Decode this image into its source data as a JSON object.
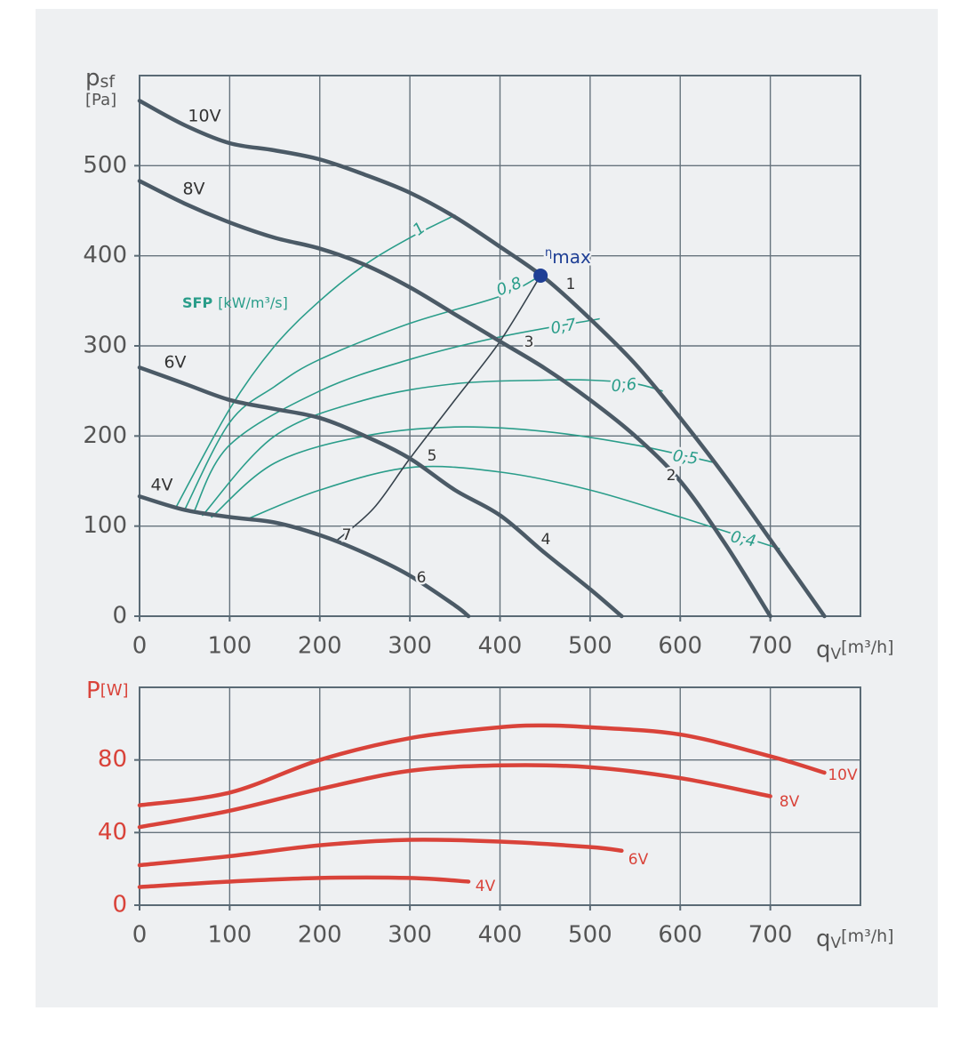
{
  "chart_data": [
    {
      "type": "line",
      "ylabel": {
        "symbol": "p",
        "subscript": "sf",
        "unit": "[Pa]"
      },
      "xlabel": {
        "symbol": "q",
        "subscript": "V",
        "unit": "[m³/h]"
      },
      "xlim": [
        0,
        800
      ],
      "xticks": [
        0,
        100,
        200,
        300,
        400,
        500,
        600,
        700
      ],
      "ylim": [
        0,
        600
      ],
      "yticks": [
        0,
        100,
        200,
        300,
        400,
        500
      ],
      "grid": true,
      "series": [
        {
          "name": "10V",
          "color": "#4b5a66",
          "x": [
            0,
            50,
            100,
            150,
            200,
            250,
            300,
            350,
            400,
            450,
            500,
            550,
            600,
            650,
            700,
            760
          ],
          "values": [
            572,
            545,
            525,
            517,
            507,
            490,
            470,
            443,
            410,
            375,
            330,
            280,
            220,
            155,
            85,
            0
          ]
        },
        {
          "name": "8V",
          "color": "#4b5a66",
          "x": [
            0,
            50,
            100,
            150,
            200,
            250,
            300,
            350,
            400,
            450,
            500,
            550,
            600,
            650,
            700
          ],
          "values": [
            483,
            458,
            437,
            420,
            408,
            390,
            365,
            335,
            305,
            275,
            240,
            200,
            150,
            80,
            0
          ]
        },
        {
          "name": "6V",
          "color": "#4b5a66",
          "x": [
            0,
            50,
            100,
            150,
            200,
            250,
            300,
            350,
            400,
            450,
            500,
            535
          ],
          "values": [
            276,
            258,
            240,
            230,
            220,
            200,
            175,
            140,
            112,
            70,
            30,
            0
          ]
        },
        {
          "name": "4V",
          "color": "#4b5a66",
          "x": [
            0,
            50,
            100,
            150,
            200,
            250,
            300,
            350,
            365
          ],
          "values": [
            133,
            118,
            110,
            104,
            90,
            70,
            45,
            12,
            0
          ]
        }
      ],
      "sfp_label": {
        "bold": "SFP",
        "unit": "[kW/m³/s]"
      },
      "sfp_color": "#2a9d8a",
      "sfp_series": [
        {
          "name": "1",
          "x": [
            40,
            100,
            150,
            200,
            250,
            300,
            350
          ],
          "values": [
            120,
            230,
            300,
            350,
            390,
            420,
            445
          ]
        },
        {
          "name": "0,8",
          "x": [
            50,
            100,
            150,
            200,
            300,
            400,
            445
          ],
          "values": [
            118,
            215,
            255,
            285,
            325,
            355,
            378
          ]
        },
        {
          "name": "0,7",
          "x": [
            60,
            100,
            200,
            300,
            400,
            510
          ],
          "values": [
            115,
            190,
            250,
            285,
            310,
            330
          ]
        },
        {
          "name": "0,6",
          "x": [
            70,
            150,
            250,
            350,
            450,
            500,
            550,
            580
          ],
          "values": [
            112,
            200,
            240,
            258,
            262,
            262,
            258,
            250
          ]
        },
        {
          "name": "0,5",
          "x": [
            80,
            150,
            250,
            350,
            450,
            550,
            640
          ],
          "values": [
            110,
            170,
            200,
            210,
            205,
            190,
            170
          ]
        },
        {
          "name": "0,4",
          "x": [
            120,
            200,
            300,
            400,
            500,
            600,
            710
          ],
          "values": [
            108,
            140,
            165,
            160,
            140,
            110,
            75
          ]
        }
      ],
      "efficiency_line": {
        "color": "#36424c",
        "x": [
          220,
          260,
          300,
          350,
          400,
          445
        ],
        "values": [
          85,
          120,
          175,
          240,
          305,
          378
        ]
      },
      "point_labels": [
        "1",
        "2",
        "3",
        "4",
        "5",
        "6",
        "7"
      ],
      "eta_max": {
        "symbol": "η",
        "subscript": "max",
        "x": 445,
        "y": 378,
        "color": "#1f3f95"
      }
    },
    {
      "type": "line",
      "ylabel": {
        "symbol": "P",
        "unit": "[W]"
      },
      "xlabel": {
        "symbol": "q",
        "subscript": "V",
        "unit": "[m³/h]"
      },
      "xlim": [
        0,
        800
      ],
      "xticks": [
        0,
        100,
        200,
        300,
        400,
        500,
        600,
        700
      ],
      "ylim": [
        0,
        120
      ],
      "yticks": [
        0,
        40,
        80
      ],
      "grid": true,
      "axis_color": "#d9433a",
      "series": [
        {
          "name": "10V",
          "color": "#d9433a",
          "x": [
            0,
            100,
            200,
            300,
            400,
            450,
            500,
            600,
            700,
            760
          ],
          "values": [
            55,
            62,
            80,
            92,
            98,
            99,
            98,
            94,
            82,
            73
          ]
        },
        {
          "name": "8V",
          "color": "#d9433a",
          "x": [
            0,
            100,
            200,
            300,
            400,
            500,
            600,
            700
          ],
          "values": [
            43,
            52,
            64,
            74,
            77,
            76,
            70,
            60
          ]
        },
        {
          "name": "6V",
          "color": "#d9433a",
          "x": [
            0,
            100,
            200,
            300,
            400,
            500,
            535
          ],
          "values": [
            22,
            27,
            33,
            36,
            35,
            32,
            30
          ]
        },
        {
          "name": "4V",
          "color": "#d9433a",
          "x": [
            0,
            100,
            200,
            300,
            365
          ],
          "values": [
            10,
            13,
            15,
            15,
            13
          ]
        }
      ]
    }
  ]
}
